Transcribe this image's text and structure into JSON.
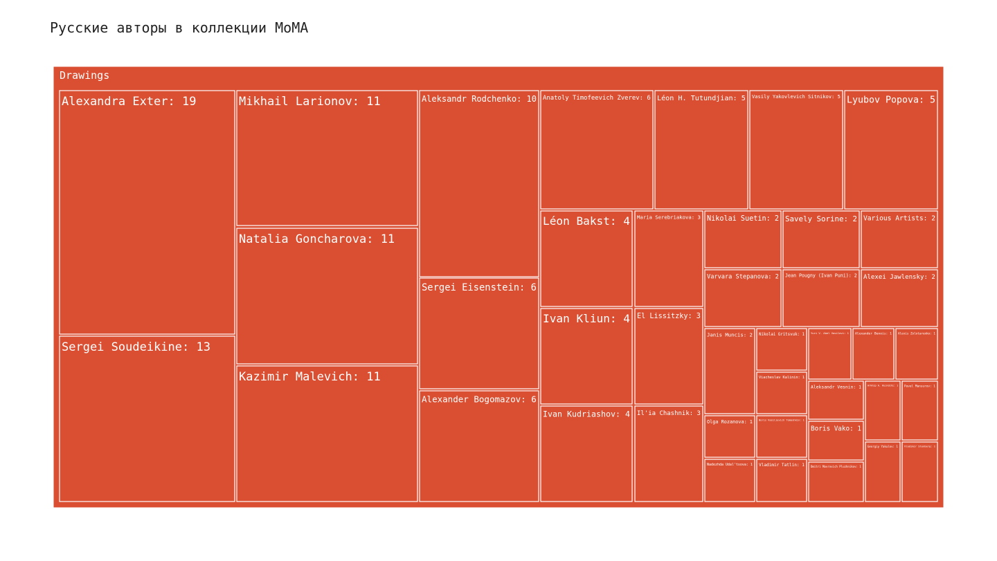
{
  "page_title": "Русские авторы в коллекции MoMA",
  "chart_data": {
    "type": "treemap",
    "title": "Русские авторы в коллекции MoMA",
    "group": "Drawings",
    "fill_color": "#da4f32",
    "border_color": "#ffffff",
    "items": [
      {
        "label": "Alexandra Exter: 19",
        "name": "Alexandra Exter",
        "value": 19
      },
      {
        "label": "Sergei Soudeikine: 13",
        "name": "Sergei Soudeikine",
        "value": 13
      },
      {
        "label": "Mikhail Larionov: 11",
        "name": "Mikhail Larionov",
        "value": 11
      },
      {
        "label": "Natalia Goncharova: 11",
        "name": "Natalia Goncharova",
        "value": 11
      },
      {
        "label": "Kazimir Malevich: 11",
        "name": "Kazimir Malevich",
        "value": 11
      },
      {
        "label": "Aleksandr Rodchenko: 10",
        "name": "Aleksandr Rodchenko",
        "value": 10
      },
      {
        "label": "Sergei Eisenstein: 6",
        "name": "Sergei Eisenstein",
        "value": 6
      },
      {
        "label": "Alexander Bogomazov: 6",
        "name": "Alexander Bogomazov",
        "value": 6
      },
      {
        "label": "Anatoly Timofeevich Zverev: 6",
        "name": "Anatoly Timofeevich Zverev",
        "value": 6
      },
      {
        "label": "Léon H. Tutundjian: 5",
        "name": "Léon H. Tutundjian",
        "value": 5
      },
      {
        "label": "Vasily Yakovlevich Sitnikov: 5",
        "name": "Vasily Yakovlevich Sitnikov",
        "value": 5
      },
      {
        "label": "Lyubov Popova: 5",
        "name": "Lyubov Popova",
        "value": 5
      },
      {
        "label": "Léon Bakst: 4",
        "name": "Léon Bakst",
        "value": 4
      },
      {
        "label": "Ivan Kliun: 4",
        "name": "Ivan Kliun",
        "value": 4
      },
      {
        "label": "Ivan Kudriashov: 4",
        "name": "Ivan Kudriashov",
        "value": 4
      },
      {
        "label": "Maria Serebriakova: 3",
        "name": "Maria Serebriakova",
        "value": 3
      },
      {
        "label": "El Lissitzky: 3",
        "name": "El Lissitzky",
        "value": 3
      },
      {
        "label": "Il'ia Chashnik: 3",
        "name": "Il'ia Chashnik",
        "value": 3
      },
      {
        "label": "Nikolai Suetin: 2",
        "name": "Nikolai Suetin",
        "value": 2
      },
      {
        "label": "Savely Sorine: 2",
        "name": "Savely Sorine",
        "value": 2
      },
      {
        "label": "Various Artists: 2",
        "name": "Various Artists",
        "value": 2
      },
      {
        "label": "Varvara Stepanova: 2",
        "name": "Varvara Stepanova",
        "value": 2
      },
      {
        "label": "Jean Pougny (Ivan Puni): 2",
        "name": "Jean Pougny (Ivan Puni)",
        "value": 2
      },
      {
        "label": "Alexei Jawlensky: 2",
        "name": "Alexei Jawlensky",
        "value": 2
      },
      {
        "label": "Janis Muncis: 2",
        "name": "Janis Muncis",
        "value": 2
      },
      {
        "label": "Nikolai Gritsvuk: 1",
        "name": "Nikolai Gritsvuk",
        "value": 1
      },
      {
        "label": "Viacheslav Kalinin: 1",
        "name": "Viacheslav Kalinin",
        "value": 1
      },
      {
        "label": "Olga Rozanova: 1",
        "name": "Olga Rozanova",
        "value": 1
      },
      {
        "label": "Boris Vasilievich Tomashkin: 1",
        "name": "Boris Vasilievich Tomashkin",
        "value": 1
      },
      {
        "label": "Nadezhda Udal'tsova: 1",
        "name": "Nadezhda Udal'tsova",
        "value": 1
      },
      {
        "label": "Vladimir Tatlin: 1",
        "name": "Vladimir Tatlin",
        "value": 1
      },
      {
        "label": "Yuri V. Abel Vasilevi: 1",
        "name": "Yuri V. Abel Vasilevi",
        "value": 1
      },
      {
        "label": "Alexander Benois: 1",
        "name": "Alexander Benois",
        "value": 1
      },
      {
        "label": "Alexis Zolotarenko: 1",
        "name": "Alexis Zolotarenko",
        "value": 1
      },
      {
        "label": "Aleksandr Vesnin: 1",
        "name": "Aleksandr Vesnin",
        "value": 1
      },
      {
        "label": "Boris Vako: 1",
        "name": "Boris Vako",
        "value": 1
      },
      {
        "label": "Dmitri Mavrovich Pluzhnikov: 1",
        "name": "Dmitri Mavrovich Pluzhnikov",
        "value": 1
      },
      {
        "label": "Arkhip A. Kuindzhi: 1",
        "name": "Arkhip A. Kuindzhi",
        "value": 1
      },
      {
        "label": "Georgiy Yakulov: 1",
        "name": "Georgiy Yakulov",
        "value": 1
      },
      {
        "label": "Pavel Mansurov: 1",
        "name": "Pavel Mansurov",
        "value": 1
      },
      {
        "label": "Vladimir Stenberg: 1",
        "name": "Vladimir Stenberg",
        "value": 1
      }
    ]
  }
}
